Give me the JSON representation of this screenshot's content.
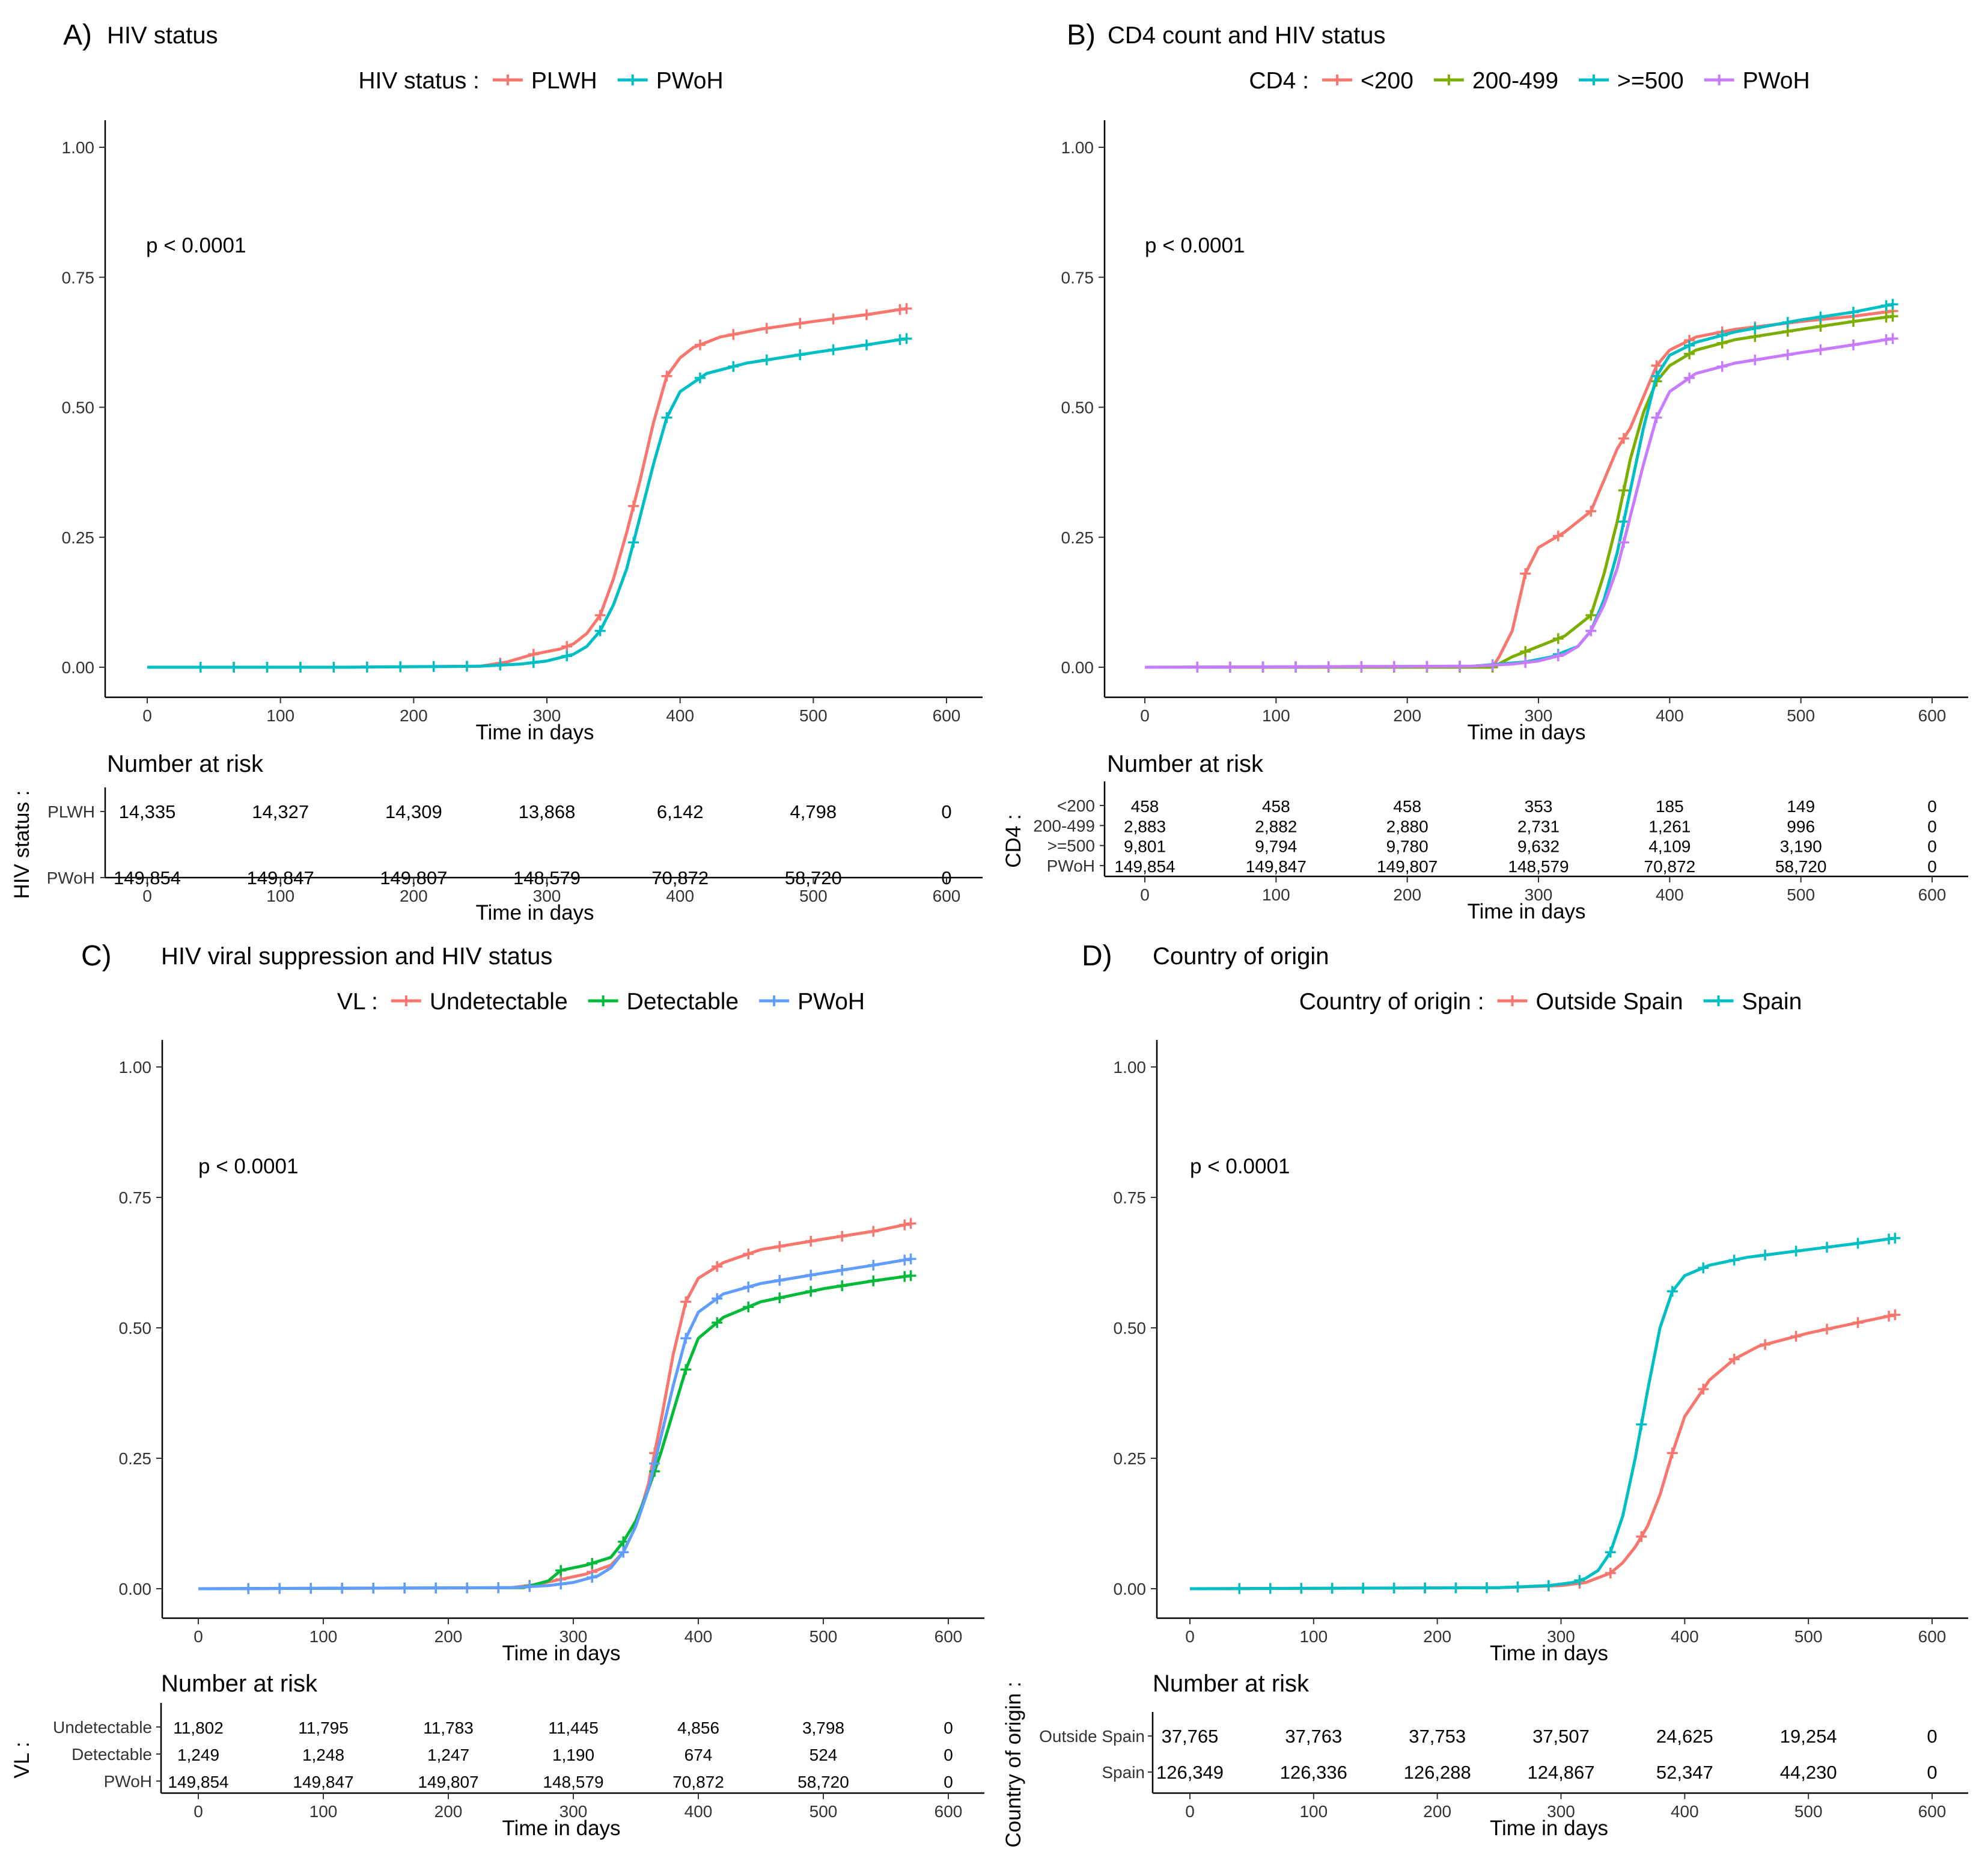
{
  "chart_data": [
    {
      "type": "line",
      "panel": "A)",
      "title": "HIV status",
      "legend_title": "HIV status :",
      "pvalue": "p < 0.0001",
      "xlabel": "Time in days",
      "xlim": [
        0,
        600
      ],
      "ylim": [
        0,
        1
      ],
      "xticks": [
        "0",
        "100",
        "200",
        "300",
        "400",
        "500",
        "600"
      ],
      "yticks": [
        "0.00",
        "0.25",
        "0.50",
        "0.75",
        "1.00"
      ],
      "risk_title": "Number at risk",
      "risk_ylabel": "HIV status :",
      "series": [
        {
          "name": "PLWH",
          "color": "#F8766D",
          "x": [
            0,
            150,
            250,
            270,
            290,
            310,
            320,
            330,
            340,
            350,
            360,
            370,
            380,
            390,
            400,
            410,
            430,
            460,
            500,
            540,
            570
          ],
          "y": [
            0,
            0,
            0.002,
            0.01,
            0.025,
            0.035,
            0.045,
            0.065,
            0.1,
            0.17,
            0.26,
            0.36,
            0.47,
            0.56,
            0.595,
            0.615,
            0.635,
            0.65,
            0.665,
            0.678,
            0.69
          ],
          "risk": [
            "14,335",
            "14,327",
            "14,309",
            "13,868",
            "6,142",
            "4,798",
            "0"
          ]
        },
        {
          "name": "PWoH",
          "color": "#00BFC4",
          "x": [
            0,
            150,
            250,
            280,
            300,
            320,
            330,
            340,
            350,
            360,
            370,
            380,
            390,
            400,
            420,
            450,
            500,
            540,
            570
          ],
          "y": [
            0,
            0,
            0.002,
            0.006,
            0.012,
            0.025,
            0.04,
            0.07,
            0.12,
            0.19,
            0.29,
            0.39,
            0.48,
            0.53,
            0.565,
            0.585,
            0.605,
            0.62,
            0.632
          ],
          "risk": [
            "149,854",
            "149,847",
            "149,807",
            "148,579",
            "70,872",
            "58,720",
            "0"
          ]
        }
      ]
    },
    {
      "type": "line",
      "panel": "B)",
      "title": "CD4 count and HIV status",
      "legend_title": "CD4 :",
      "pvalue": "p < 0.0001",
      "xlabel": "Time in days",
      "xlim": [
        0,
        600
      ],
      "ylim": [
        0,
        1
      ],
      "xticks": [
        "0",
        "100",
        "200",
        "300",
        "400",
        "500",
        "600"
      ],
      "yticks": [
        "0.00",
        "0.25",
        "0.50",
        "0.75",
        "1.00"
      ],
      "risk_title": "Number at risk",
      "risk_ylabel": "CD4 :",
      "series": [
        {
          "name": "<200",
          "color": "#F8766D",
          "x": [
            0,
            265,
            270,
            280,
            290,
            300,
            320,
            340,
            350,
            360,
            370,
            380,
            390,
            400,
            420,
            450,
            500,
            540,
            570
          ],
          "y": [
            0,
            0,
            0.02,
            0.07,
            0.18,
            0.23,
            0.26,
            0.3,
            0.36,
            0.42,
            0.46,
            0.52,
            0.58,
            0.61,
            0.635,
            0.65,
            0.665,
            0.675,
            0.685
          ],
          "risk": [
            "458",
            "458",
            "458",
            "353",
            "185",
            "149",
            "0"
          ]
        },
        {
          "name": "200-499",
          "color": "#7CAE00",
          "x": [
            0,
            265,
            280,
            300,
            320,
            340,
            350,
            360,
            370,
            380,
            390,
            400,
            420,
            450,
            500,
            540,
            570
          ],
          "y": [
            0,
            0,
            0.02,
            0.04,
            0.06,
            0.1,
            0.18,
            0.28,
            0.4,
            0.49,
            0.55,
            0.58,
            0.61,
            0.63,
            0.65,
            0.665,
            0.675
          ],
          "risk": [
            "2,883",
            "2,882",
            "2,880",
            "2,731",
            "1,261",
            "996",
            "0"
          ]
        },
        {
          "name": ">=500",
          "color": "#00BFC4",
          "x": [
            0,
            250,
            290,
            310,
            330,
            340,
            350,
            360,
            370,
            380,
            390,
            400,
            420,
            450,
            500,
            540,
            570
          ],
          "y": [
            0,
            0.002,
            0.01,
            0.02,
            0.04,
            0.07,
            0.13,
            0.22,
            0.34,
            0.46,
            0.56,
            0.6,
            0.625,
            0.645,
            0.668,
            0.683,
            0.698
          ],
          "risk": [
            "9,801",
            "9,794",
            "9,780",
            "9,632",
            "4,109",
            "3,190",
            "0"
          ]
        },
        {
          "name": "PWoH",
          "color": "#C77CFF",
          "x": [
            0,
            250,
            280,
            300,
            320,
            330,
            340,
            350,
            360,
            370,
            380,
            390,
            400,
            420,
            450,
            500,
            540,
            570
          ],
          "y": [
            0,
            0.002,
            0.006,
            0.012,
            0.025,
            0.04,
            0.07,
            0.12,
            0.19,
            0.29,
            0.39,
            0.48,
            0.53,
            0.565,
            0.585,
            0.605,
            0.62,
            0.632
          ],
          "risk": [
            "149,854",
            "149,847",
            "149,807",
            "148,579",
            "70,872",
            "58,720",
            "0"
          ]
        }
      ]
    },
    {
      "type": "line",
      "panel": "C)",
      "title": "HIV viral suppression and HIV status",
      "legend_title": "VL :",
      "pvalue": "p < 0.0001",
      "xlabel": "Time in days",
      "xlim": [
        0,
        600
      ],
      "ylim": [
        0,
        1
      ],
      "xticks": [
        "0",
        "100",
        "200",
        "300",
        "400",
        "500",
        "600"
      ],
      "yticks": [
        "0.00",
        "0.25",
        "0.50",
        "0.75",
        "1.00"
      ],
      "risk_title": "Number at risk",
      "risk_ylabel": "VL :",
      "series": [
        {
          "name": "Undetectable",
          "color": "#F8766D",
          "x": [
            0,
            250,
            270,
            290,
            310,
            330,
            340,
            350,
            360,
            370,
            380,
            390,
            400,
            420,
            450,
            500,
            540,
            570
          ],
          "y": [
            0,
            0.002,
            0.008,
            0.018,
            0.028,
            0.045,
            0.07,
            0.12,
            0.2,
            0.32,
            0.45,
            0.55,
            0.595,
            0.625,
            0.65,
            0.67,
            0.685,
            0.7
          ],
          "risk": [
            "11,802",
            "11,795",
            "11,783",
            "11,445",
            "4,856",
            "3,798",
            "0"
          ]
        },
        {
          "name": "Detectable",
          "color": "#00BA38",
          "x": [
            0,
            260,
            280,
            290,
            310,
            330,
            340,
            350,
            360,
            370,
            380,
            390,
            400,
            420,
            450,
            500,
            540,
            570
          ],
          "y": [
            0,
            0.002,
            0.015,
            0.035,
            0.045,
            0.06,
            0.09,
            0.13,
            0.19,
            0.26,
            0.34,
            0.42,
            0.48,
            0.52,
            0.55,
            0.575,
            0.59,
            0.6
          ],
          "risk": [
            "1,249",
            "1,248",
            "1,247",
            "1,190",
            "674",
            "524",
            "0"
          ]
        },
        {
          "name": "PWoH",
          "color": "#619CFF",
          "x": [
            0,
            250,
            280,
            300,
            320,
            330,
            340,
            350,
            360,
            370,
            380,
            390,
            400,
            420,
            450,
            500,
            540,
            570
          ],
          "y": [
            0,
            0.002,
            0.006,
            0.012,
            0.025,
            0.04,
            0.07,
            0.12,
            0.19,
            0.29,
            0.39,
            0.48,
            0.53,
            0.565,
            0.585,
            0.605,
            0.62,
            0.632
          ],
          "risk": [
            "149,854",
            "149,847",
            "149,807",
            "148,579",
            "70,872",
            "58,720",
            "0"
          ]
        }
      ]
    },
    {
      "type": "line",
      "panel": "D)",
      "title": "Country of origin",
      "legend_title": "Country of origin :",
      "pvalue": "p < 0.0001",
      "xlabel": "Time in days",
      "xlim": [
        0,
        600
      ],
      "ylim": [
        0,
        1
      ],
      "xticks": [
        "0",
        "100",
        "200",
        "300",
        "400",
        "500",
        "600"
      ],
      "yticks": [
        "0.00",
        "0.25",
        "0.50",
        "0.75",
        "1.00"
      ],
      "risk_title": "Number at risk",
      "risk_ylabel": "Country of origin :",
      "series": [
        {
          "name": "Outside Spain",
          "color": "#F8766D",
          "x": [
            0,
            250,
            300,
            320,
            340,
            350,
            360,
            370,
            380,
            390,
            400,
            420,
            440,
            460,
            500,
            540,
            570
          ],
          "y": [
            0,
            0.002,
            0.006,
            0.012,
            0.03,
            0.05,
            0.08,
            0.12,
            0.18,
            0.26,
            0.33,
            0.4,
            0.44,
            0.465,
            0.49,
            0.51,
            0.525
          ],
          "risk": [
            "37,765",
            "37,763",
            "37,753",
            "37,507",
            "24,625",
            "19,254",
            "0"
          ]
        },
        {
          "name": "Spain",
          "color": "#00BFC4",
          "x": [
            0,
            250,
            290,
            310,
            320,
            330,
            340,
            350,
            360,
            370,
            380,
            390,
            400,
            420,
            450,
            500,
            540,
            570
          ],
          "y": [
            0,
            0.002,
            0.006,
            0.012,
            0.02,
            0.035,
            0.07,
            0.14,
            0.25,
            0.38,
            0.5,
            0.57,
            0.6,
            0.62,
            0.635,
            0.65,
            0.662,
            0.672
          ],
          "risk": [
            "126,349",
            "126,336",
            "126,288",
            "124,867",
            "52,347",
            "44,230",
            "0"
          ]
        }
      ]
    }
  ]
}
